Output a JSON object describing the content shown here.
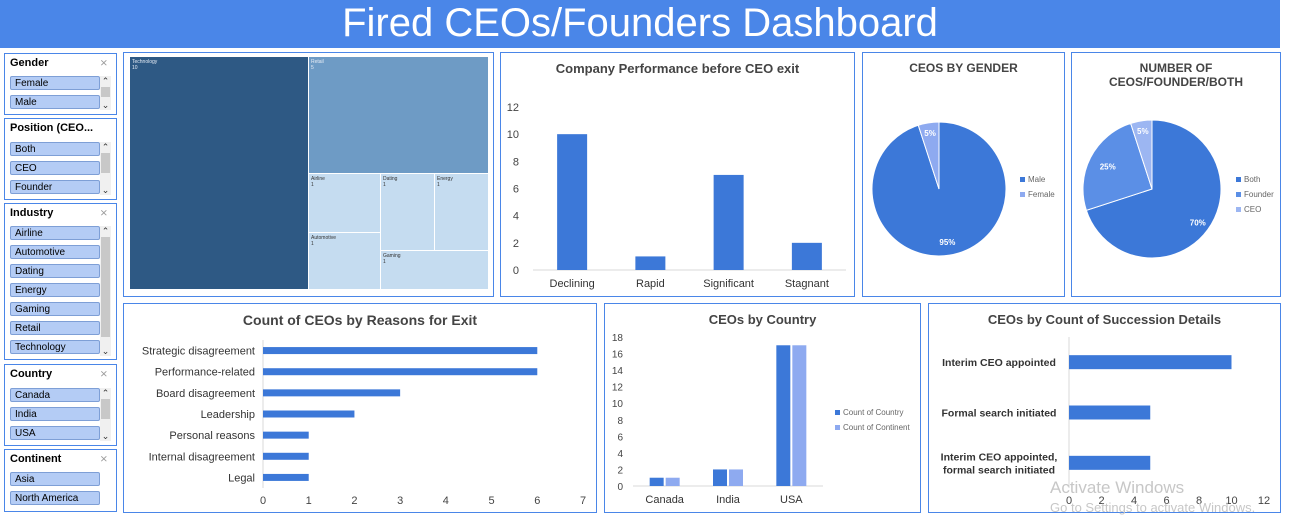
{
  "dashboard": {
    "title": "Fired CEOs/Founders Dashboard"
  },
  "slicers": [
    {
      "title": "Gender",
      "items": [
        "Female",
        "Male"
      ]
    },
    {
      "title": "Position (CEO...",
      "items": [
        "Both",
        "CEO",
        "Founder"
      ]
    },
    {
      "title": "Industry",
      "items": [
        "Airline",
        "Automotive",
        "Dating",
        "Energy",
        "Gaming",
        "Retail",
        "Technology"
      ]
    },
    {
      "title": "Country",
      "items": [
        "Canada",
        "India",
        "USA"
      ]
    },
    {
      "title": "Continent",
      "items": [
        "Asia",
        "North America"
      ]
    }
  ],
  "icons": {
    "filter": "filter-clear-icon",
    "scroll_up": "chevron-up-icon",
    "scroll_down": "chevron-down-icon"
  },
  "colors": {
    "accent": "#4a86e8",
    "bar": "#3c78d8",
    "light_bar": "#8eaaf0",
    "treemap_dark": "#2e5984",
    "treemap_mid": "#6e9bc5",
    "treemap_light": "#c5dcf0"
  },
  "chart_data": [
    {
      "type": "treemap",
      "labels": [
        "Technology",
        "Retail",
        "Airline",
        "Dating",
        "Energy",
        "Automotive",
        "Gaming"
      ],
      "values": [
        10,
        5,
        1,
        1,
        1,
        1,
        1
      ]
    },
    {
      "type": "bar",
      "title": "Company  Performance before CEO exit",
      "categories": [
        "Declining",
        "Rapid",
        "Significant",
        "Stagnant"
      ],
      "values": [
        10,
        1,
        7,
        2
      ],
      "ylim": [
        0,
        12
      ],
      "yticks": [
        0,
        2,
        4,
        6,
        8,
        10,
        12
      ]
    },
    {
      "type": "pie",
      "title": "CEOS  BY  GENDER",
      "labels": [
        "Male",
        "Female"
      ],
      "values": [
        95,
        5
      ],
      "data_labels": [
        "95%",
        "5%"
      ],
      "colors": [
        "#3c78d8",
        "#8eaaf0"
      ],
      "legend": "right"
    },
    {
      "type": "pie",
      "title": "NUMBER  OF CEOS/FOUNDER/BOTH",
      "labels": [
        "Both",
        "Founder",
        "CEO"
      ],
      "values": [
        70,
        25,
        5
      ],
      "data_labels": [
        "70%",
        "25%",
        "5%"
      ],
      "colors": [
        "#3c78d8",
        "#5b8fe6",
        "#9cb6f2"
      ],
      "legend": "right"
    },
    {
      "type": "bar",
      "orientation": "horizontal",
      "title": "Count of CEOs by Reasons for Exit",
      "categories": [
        "Strategic disagreement",
        "Performance-related",
        "Board disagreement",
        "Leadership",
        "Personal reasons",
        "Internal disagreement",
        "Legal"
      ],
      "values": [
        6,
        6,
        3,
        2,
        1,
        1,
        1
      ],
      "xlim": [
        0,
        7
      ],
      "xticks": [
        0,
        1,
        2,
        3,
        4,
        5,
        6,
        7
      ]
    },
    {
      "type": "bar",
      "title": "CEOs  by  Country",
      "categories": [
        "Canada",
        "India",
        "USA"
      ],
      "series": [
        {
          "name": "Count of Country",
          "values": [
            1,
            2,
            17
          ]
        },
        {
          "name": "Count of Continent",
          "values": [
            1,
            2,
            17
          ]
        }
      ],
      "ylim": [
        0,
        18
      ],
      "yticks": [
        0,
        2,
        4,
        6,
        8,
        10,
        12,
        14,
        16,
        18
      ],
      "legend": "right"
    },
    {
      "type": "bar",
      "orientation": "horizontal",
      "title": "CEOs  by Count of Succession Details",
      "categories": [
        "Interim CEO appointed",
        "Formal search initiated",
        "Interim CEO appointed, formal search initiated"
      ],
      "values": [
        10,
        5,
        5
      ],
      "xlim": [
        0,
        12
      ],
      "xticks": [
        0,
        2,
        4,
        6,
        8,
        10,
        12
      ]
    }
  ],
  "watermark": {
    "line1": "Activate Windows",
    "line2": "Go to Settings to activate Windows."
  }
}
